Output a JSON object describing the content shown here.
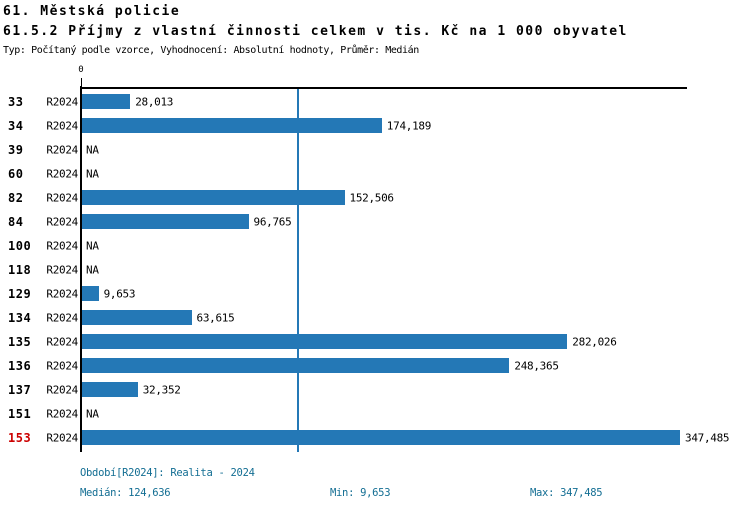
{
  "header": {
    "title": "61. Městská policie",
    "subtitle": "61.5.2 Příjmy z vlastní činnosti celkem v tis. Kč na 1 000 obyvatel",
    "meta": "Typ: Počítaný podle vzorce, Vyhodnocení: Absolutní hodnoty, Průměr: Medián"
  },
  "chart_data": {
    "type": "bar",
    "orientation": "horizontal",
    "title": "61.5.2 Příjmy z vlastní činnosti celkem v tis. Kč na 1 000 obyvatel",
    "xlabel": "",
    "ylabel": "",
    "x_axis": {
      "zero_label": "0",
      "min": 0,
      "max": 352
    },
    "grid": false,
    "median_line_value": 124.636,
    "series_name": "R2024",
    "rows": [
      {
        "id": "33",
        "period": "R2024",
        "value": 28.013,
        "label": "28,013",
        "highlight": false
      },
      {
        "id": "34",
        "period": "R2024",
        "value": 174.189,
        "label": "174,189",
        "highlight": false
      },
      {
        "id": "39",
        "period": "R2024",
        "value": null,
        "label": "NA",
        "highlight": false
      },
      {
        "id": "60",
        "period": "R2024",
        "value": null,
        "label": "NA",
        "highlight": false
      },
      {
        "id": "82",
        "period": "R2024",
        "value": 152.506,
        "label": "152,506",
        "highlight": false
      },
      {
        "id": "84",
        "period": "R2024",
        "value": 96.765,
        "label": "96,765",
        "highlight": false
      },
      {
        "id": "100",
        "period": "R2024",
        "value": null,
        "label": "NA",
        "highlight": false
      },
      {
        "id": "118",
        "period": "R2024",
        "value": null,
        "label": "NA",
        "highlight": false
      },
      {
        "id": "129",
        "period": "R2024",
        "value": 9.653,
        "label": "9,653",
        "highlight": false
      },
      {
        "id": "134",
        "period": "R2024",
        "value": 63.615,
        "label": "63,615",
        "highlight": false
      },
      {
        "id": "135",
        "period": "R2024",
        "value": 282.026,
        "label": "282,026",
        "highlight": false
      },
      {
        "id": "136",
        "period": "R2024",
        "value": 248.365,
        "label": "248,365",
        "highlight": false
      },
      {
        "id": "137",
        "period": "R2024",
        "value": 32.352,
        "label": "32,352",
        "highlight": false
      },
      {
        "id": "151",
        "period": "R2024",
        "value": null,
        "label": "NA",
        "highlight": false
      },
      {
        "id": "153",
        "period": "R2024",
        "value": 347.485,
        "label": "347,485",
        "highlight": true
      }
    ]
  },
  "footer": {
    "period_line": "Období[R2024]: Realita - 2024",
    "median": "Medián: 124,636",
    "min": "Min: 9,653",
    "max": "Max: 347,485"
  },
  "colors": {
    "bar_blue": "#2478B6",
    "label_blue": "#2B76AD",
    "footer_teal": "#136E93",
    "highlight_red": "#CC0000",
    "axis_black": "#000000"
  }
}
